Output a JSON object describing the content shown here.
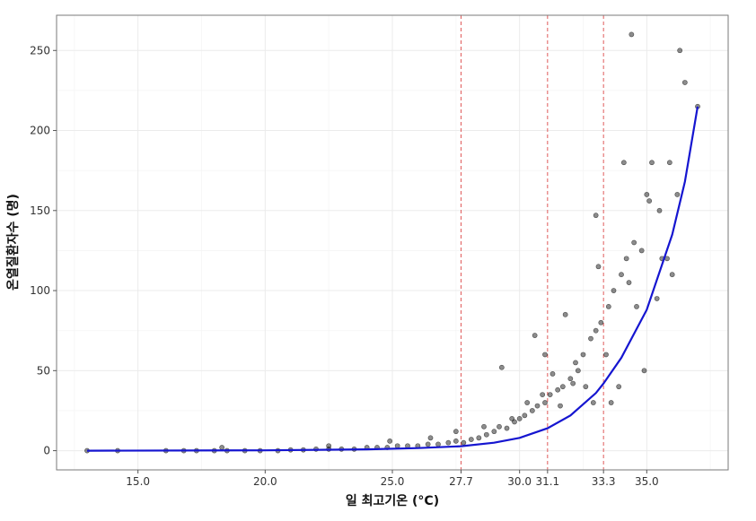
{
  "chart_data": {
    "type": "scatter",
    "xlabel": "일 최고기온 (°C)",
    "ylabel": "온열질환자수 (명)",
    "xlim": [
      11.8,
      38.2
    ],
    "ylim": [
      -12,
      272
    ],
    "x_ticks": [
      15.0,
      20.0,
      25.0,
      27.7,
      30.0,
      31.1,
      33.3,
      35.0
    ],
    "x_tick_labels": [
      "15.0",
      "20.0",
      "25.0",
      "27.7",
      "30.0",
      "31.1",
      "33.3",
      "35.0"
    ],
    "y_ticks": [
      0,
      50,
      100,
      150,
      200,
      250
    ],
    "y_tick_labels": [
      "0",
      "50",
      "100",
      "150",
      "200",
      "250"
    ],
    "grid": true,
    "threshold_lines": [
      27.7,
      31.1,
      33.3
    ],
    "fit_curve": {
      "x": [
        13.0,
        20.0,
        24.0,
        26.0,
        27.7,
        29.0,
        30.0,
        31.1,
        32.0,
        33.0,
        33.3,
        34.0,
        35.0,
        36.0,
        36.5,
        37.0
      ],
      "y": [
        0,
        0.2,
        0.8,
        1.6,
        2.8,
        5.0,
        8.0,
        14.0,
        22.0,
        36.0,
        42.0,
        58.0,
        88.0,
        135.0,
        168.0,
        215.0
      ]
    },
    "points": {
      "x": [
        13.0,
        14.2,
        16.1,
        16.8,
        17.3,
        18.0,
        18.5,
        19.2,
        19.8,
        20.5,
        21.0,
        21.5,
        22.0,
        22.5,
        23.0,
        23.5,
        24.0,
        24.4,
        24.8,
        25.2,
        25.6,
        26.0,
        26.4,
        26.8,
        27.2,
        27.5,
        27.8,
        28.1,
        28.4,
        28.7,
        29.0,
        29.2,
        29.5,
        29.8,
        30.0,
        30.2,
        30.5,
        30.7,
        31.0,
        31.2,
        31.5,
        31.7,
        32.0,
        32.2,
        32.5,
        32.8,
        33.0,
        33.2,
        33.5,
        33.7,
        34.0,
        34.2,
        34.5,
        34.8,
        35.0,
        35.2,
        35.5,
        35.8,
        36.0,
        36.2,
        36.5,
        37.0,
        18.3,
        22.5,
        24.9,
        26.5,
        27.5,
        28.6,
        29.7,
        30.3,
        30.6,
        31.0,
        31.3,
        31.8,
        32.3,
        32.6,
        32.9,
        33.1,
        33.4,
        33.6,
        33.9,
        34.1,
        34.3,
        34.6,
        34.9,
        35.1,
        35.4,
        35.6,
        35.9,
        36.3,
        29.3,
        30.9,
        31.6,
        32.1,
        33.0,
        34.4
      ],
      "y": [
        0,
        0,
        0,
        0,
        0,
        0,
        0,
        0,
        0,
        0,
        0.5,
        0.5,
        1,
        1,
        1,
        1,
        2,
        2,
        2,
        3,
        3,
        3,
        4,
        4,
        5,
        6,
        5,
        7,
        8,
        10,
        12,
        15,
        14,
        18,
        20,
        22,
        25,
        28,
        30,
        35,
        38,
        40,
        45,
        55,
        60,
        70,
        75,
        80,
        90,
        100,
        110,
        120,
        130,
        125,
        160,
        180,
        150,
        120,
        110,
        160,
        230,
        215,
        2,
        3,
        6,
        8,
        12,
        15,
        20,
        30,
        72,
        60,
        48,
        85,
        50,
        40,
        30,
        115,
        60,
        30,
        40,
        180,
        105,
        90,
        50,
        156,
        95,
        120,
        180,
        250,
        52,
        35,
        28,
        42,
        147,
        260
      ]
    }
  }
}
